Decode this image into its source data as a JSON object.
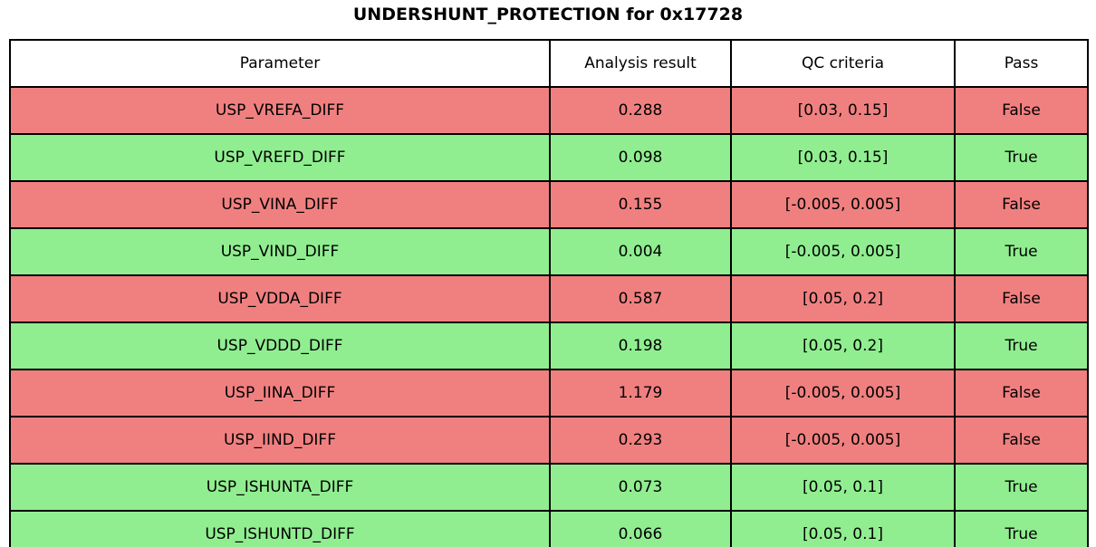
{
  "title": "UNDERSHUNT_PROTECTION for 0x17728",
  "colors": {
    "pass_true_row": "#90ee90",
    "pass_false_row": "#f08080",
    "header_bg": "#ffffff",
    "border": "#000000",
    "text": "#000000"
  },
  "chart_data": {
    "type": "table",
    "title": "UNDERSHUNT_PROTECTION for 0x17728",
    "columns": [
      "Parameter",
      "Analysis result",
      "QC criteria",
      "Pass"
    ],
    "rows": [
      {
        "parameter": "USP_VREFA_DIFF",
        "analysis_result": "0.288",
        "qc_criteria": "[0.03, 0.15]",
        "pass": "False"
      },
      {
        "parameter": "USP_VREFD_DIFF",
        "analysis_result": "0.098",
        "qc_criteria": "[0.03, 0.15]",
        "pass": "True"
      },
      {
        "parameter": "USP_VINA_DIFF",
        "analysis_result": "0.155",
        "qc_criteria": "[-0.005, 0.005]",
        "pass": "False"
      },
      {
        "parameter": "USP_VIND_DIFF",
        "analysis_result": "0.004",
        "qc_criteria": "[-0.005, 0.005]",
        "pass": "True"
      },
      {
        "parameter": "USP_VDDA_DIFF",
        "analysis_result": "0.587",
        "qc_criteria": "[0.05, 0.2]",
        "pass": "False"
      },
      {
        "parameter": "USP_VDDD_DIFF",
        "analysis_result": "0.198",
        "qc_criteria": "[0.05, 0.2]",
        "pass": "True"
      },
      {
        "parameter": "USP_IINA_DIFF",
        "analysis_result": "1.179",
        "qc_criteria": "[-0.005, 0.005]",
        "pass": "False"
      },
      {
        "parameter": "USP_IIND_DIFF",
        "analysis_result": "0.293",
        "qc_criteria": "[-0.005, 0.005]",
        "pass": "False"
      },
      {
        "parameter": "USP_ISHUNTA_DIFF",
        "analysis_result": "0.073",
        "qc_criteria": "[0.05, 0.1]",
        "pass": "True"
      },
      {
        "parameter": "USP_ISHUNTD_DIFF",
        "analysis_result": "0.066",
        "qc_criteria": "[0.05, 0.1]",
        "pass": "True"
      }
    ]
  }
}
